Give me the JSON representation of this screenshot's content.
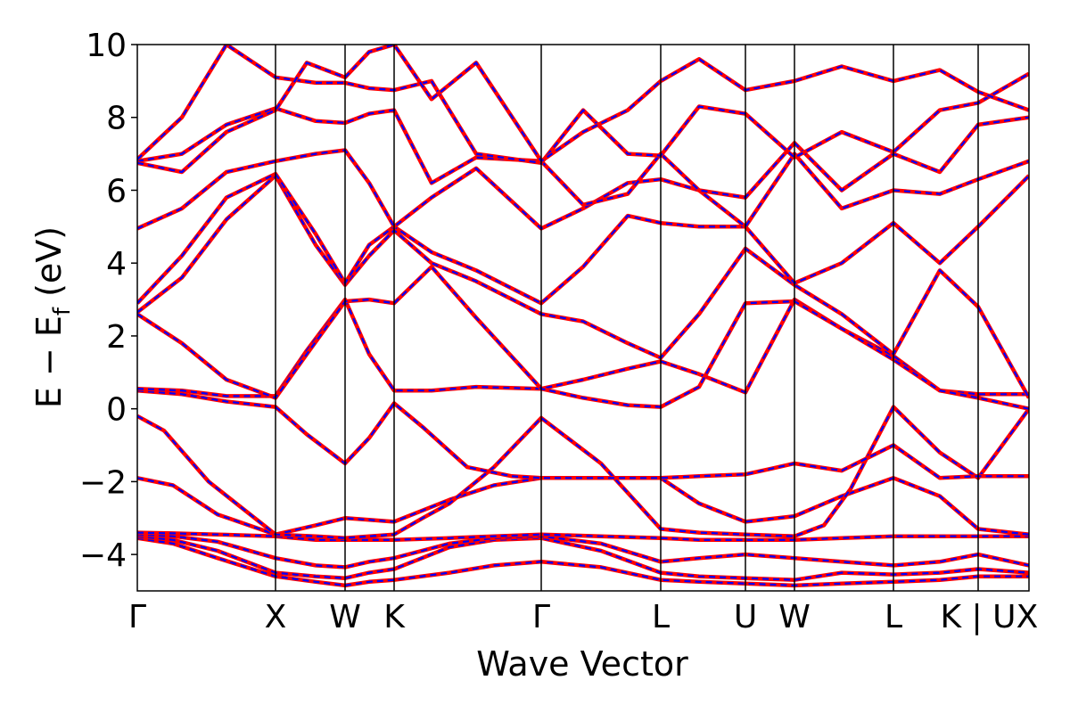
{
  "chart_data": {
    "type": "line",
    "title": "",
    "xlabel": "Wave Vector",
    "ylabel_main": "E − E",
    "ylabel_sub": "f",
    "ylabel_unit": " (eV)",
    "ylim": [
      -5,
      10
    ],
    "yticks": [
      -4,
      -2,
      0,
      2,
      4,
      6,
      8,
      10
    ],
    "ytick_labels": [
      "−4",
      "−2",
      "0",
      "2",
      "4",
      "6",
      "8",
      "10"
    ],
    "x_range": [
      0,
      1
    ],
    "kpoints": [
      {
        "label": "Γ",
        "x": 0.0
      },
      {
        "label": "X",
        "x": 0.155
      },
      {
        "label": "W",
        "x": 0.233
      },
      {
        "label": "K",
        "x": 0.288
      },
      {
        "label": "Γ",
        "x": 0.453
      },
      {
        "label": "L",
        "x": 0.587
      },
      {
        "label": "U",
        "x": 0.682
      },
      {
        "label": "W",
        "x": 0.737
      },
      {
        "label": "L",
        "x": 0.848
      },
      {
        "label": "K | U",
        "x": 0.943
      },
      {
        "label": "X",
        "x": 1.0
      }
    ],
    "series_style": {
      "outer_color": "#ff0000",
      "inner_color": "#0000ff",
      "inner_dash": "dashed"
    },
    "bands": [
      {
        "x": [
          0,
          0.04,
          0.09,
          0.155,
          0.2,
          0.233,
          0.26,
          0.288,
          0.35,
          0.4,
          0.453,
          0.52,
          0.587,
          0.63,
          0.682,
          0.737,
          0.79,
          0.848,
          0.9,
          0.943,
          1.0
        ],
        "y": [
          -3.55,
          -3.7,
          -4.1,
          -4.6,
          -4.75,
          -4.85,
          -4.75,
          -4.7,
          -4.5,
          -4.3,
          -4.2,
          -4.35,
          -4.7,
          -4.75,
          -4.8,
          -4.85,
          -4.8,
          -4.75,
          -4.7,
          -4.6,
          -4.6
        ]
      },
      {
        "x": [
          0,
          0.04,
          0.09,
          0.155,
          0.2,
          0.233,
          0.26,
          0.288,
          0.35,
          0.4,
          0.453,
          0.52,
          0.587,
          0.63,
          0.682,
          0.737,
          0.79,
          0.848,
          0.9,
          0.943,
          1.0
        ],
        "y": [
          -3.5,
          -3.6,
          -3.9,
          -4.5,
          -4.6,
          -4.65,
          -4.5,
          -4.4,
          -3.8,
          -3.6,
          -3.55,
          -3.9,
          -4.5,
          -4.6,
          -4.65,
          -4.7,
          -4.5,
          -4.55,
          -4.5,
          -4.4,
          -4.5
        ]
      },
      {
        "x": [
          0,
          0.04,
          0.09,
          0.155,
          0.2,
          0.233,
          0.26,
          0.288,
          0.35,
          0.4,
          0.453,
          0.52,
          0.587,
          0.63,
          0.682,
          0.737,
          0.79,
          0.848,
          0.9,
          0.943,
          1.0
        ],
        "y": [
          -3.45,
          -3.5,
          -3.65,
          -4.1,
          -4.3,
          -4.35,
          -4.2,
          -4.1,
          -3.7,
          -3.55,
          -3.5,
          -3.7,
          -4.2,
          -4.1,
          -4.0,
          -4.1,
          -4.2,
          -4.3,
          -4.2,
          -4.0,
          -4.3
        ]
      },
      {
        "x": [
          0,
          0.04,
          0.09,
          0.155,
          0.2,
          0.233,
          0.26,
          0.288,
          0.35,
          0.4,
          0.453,
          0.52,
          0.587,
          0.63,
          0.682,
          0.737,
          0.79,
          0.848,
          0.9,
          0.943,
          1.0
        ],
        "y": [
          -3.4,
          -3.42,
          -3.45,
          -3.5,
          -3.6,
          -3.6,
          -3.6,
          -3.6,
          -3.55,
          -3.5,
          -3.45,
          -3.5,
          -3.55,
          -3.6,
          -3.6,
          -3.6,
          -3.55,
          -3.5,
          -3.5,
          -3.5,
          -3.5
        ]
      },
      {
        "x": [
          0,
          0.04,
          0.09,
          0.155,
          0.2,
          0.233,
          0.26,
          0.288,
          0.35,
          0.4,
          0.453,
          0.52,
          0.587,
          0.63,
          0.682,
          0.737,
          0.79,
          0.848,
          0.9,
          0.943,
          1.0
        ],
        "y": [
          -1.9,
          -2.1,
          -2.9,
          -3.45,
          -3.2,
          -3.0,
          -3.05,
          -3.1,
          -2.5,
          -2.1,
          -1.9,
          -1.9,
          -1.9,
          -2.6,
          -3.1,
          -2.95,
          -2.4,
          -1.9,
          -2.4,
          -3.3,
          -3.45
        ]
      },
      {
        "x": [
          0,
          0.03,
          0.08,
          0.155,
          0.2,
          0.233,
          0.26,
          0.288,
          0.32,
          0.35,
          0.4,
          0.453,
          0.52,
          0.587,
          0.63,
          0.682,
          0.737,
          0.77,
          0.8,
          0.848,
          0.9,
          0.943,
          1.0
        ],
        "y": [
          -0.2,
          -0.6,
          -2.0,
          -3.45,
          -3.5,
          -3.55,
          -3.5,
          -3.45,
          -3.0,
          -2.6,
          -1.6,
          -0.25,
          -1.5,
          -3.3,
          -3.4,
          -3.45,
          -3.5,
          -3.2,
          -2.2,
          0.05,
          -1.2,
          -1.9,
          0.0
        ]
      },
      {
        "x": [
          0,
          0.05,
          0.1,
          0.155,
          0.19,
          0.233,
          0.26,
          0.288,
          0.32,
          0.37,
          0.42,
          0.453,
          0.5,
          0.55,
          0.587,
          0.63,
          0.682,
          0.71,
          0.737,
          0.79,
          0.848,
          0.9,
          0.943,
          1.0
        ],
        "y": [
          0.5,
          0.4,
          0.2,
          0.05,
          -0.7,
          -1.5,
          -0.8,
          0.15,
          -0.5,
          -1.6,
          -1.85,
          -1.9,
          -1.9,
          -1.9,
          -1.9,
          -1.85,
          -1.8,
          -1.65,
          -1.5,
          -1.7,
          -1.0,
          -1.9,
          -1.85,
          -1.85
        ]
      },
      {
        "x": [
          0,
          0.05,
          0.1,
          0.155,
          0.19,
          0.233,
          0.26,
          0.288,
          0.33,
          0.38,
          0.453,
          0.5,
          0.55,
          0.587,
          0.63,
          0.682,
          0.737,
          0.79,
          0.848,
          0.9,
          0.943,
          1.0
        ],
        "y": [
          0.55,
          0.5,
          0.35,
          0.35,
          1.6,
          3.0,
          1.5,
          0.5,
          0.5,
          0.6,
          0.55,
          0.8,
          1.1,
          1.3,
          0.95,
          0.45,
          3.0,
          2.2,
          1.45,
          0.5,
          0.4,
          0.4
        ]
      },
      {
        "x": [
          0,
          0.05,
          0.1,
          0.155,
          0.19,
          0.233,
          0.26,
          0.288,
          0.33,
          0.38,
          0.453,
          0.5,
          0.55,
          0.587,
          0.63,
          0.682,
          0.737,
          0.79,
          0.848,
          0.9,
          0.943,
          1.0
        ],
        "y": [
          2.6,
          1.8,
          0.8,
          0.3,
          1.5,
          2.95,
          3.0,
          2.9,
          3.9,
          2.5,
          0.55,
          0.3,
          0.1,
          0.05,
          0.6,
          2.9,
          2.95,
          2.2,
          1.35,
          0.5,
          0.3,
          0.0
        ]
      },
      {
        "x": [
          0,
          0.05,
          0.1,
          0.155,
          0.2,
          0.233,
          0.26,
          0.288,
          0.33,
          0.38,
          0.453,
          0.5,
          0.55,
          0.587,
          0.63,
          0.682,
          0.737,
          0.79,
          0.848,
          0.9,
          0.943,
          1.0
        ],
        "y": [
          2.65,
          3.6,
          5.2,
          6.4,
          4.5,
          3.4,
          4.2,
          4.9,
          4.0,
          3.5,
          2.6,
          2.4,
          1.8,
          1.4,
          2.6,
          4.4,
          3.4,
          2.6,
          1.5,
          3.8,
          2.8,
          0.3
        ]
      },
      {
        "x": [
          0,
          0.05,
          0.1,
          0.155,
          0.2,
          0.233,
          0.26,
          0.288,
          0.33,
          0.38,
          0.453,
          0.5,
          0.55,
          0.587,
          0.63,
          0.682,
          0.737,
          0.79,
          0.848,
          0.9,
          0.943,
          1.0
        ],
        "y": [
          2.9,
          4.2,
          5.8,
          6.45,
          4.8,
          3.45,
          4.5,
          5.0,
          4.3,
          3.8,
          2.9,
          3.9,
          5.3,
          5.1,
          5.0,
          5.0,
          3.45,
          4.0,
          5.1,
          4.0,
          5.0,
          6.4
        ]
      },
      {
        "x": [
          0,
          0.05,
          0.1,
          0.155,
          0.2,
          0.233,
          0.26,
          0.288,
          0.33,
          0.38,
          0.453,
          0.5,
          0.55,
          0.587,
          0.63,
          0.682,
          0.737,
          0.79,
          0.848,
          0.9,
          0.943,
          1.0
        ],
        "y": [
          4.95,
          5.5,
          6.5,
          6.8,
          7.0,
          7.1,
          6.2,
          5.0,
          5.8,
          6.6,
          4.95,
          5.5,
          6.2,
          6.3,
          6.0,
          5.0,
          7.0,
          5.5,
          6.0,
          5.9,
          6.3,
          6.8
        ]
      },
      {
        "x": [
          0,
          0.05,
          0.1,
          0.155,
          0.2,
          0.233,
          0.26,
          0.288,
          0.33,
          0.38,
          0.453,
          0.5,
          0.55,
          0.587,
          0.63,
          0.682,
          0.737,
          0.79,
          0.848,
          0.9,
          0.943,
          1.0
        ],
        "y": [
          6.8,
          7.0,
          7.8,
          8.25,
          7.9,
          7.85,
          8.1,
          8.2,
          6.2,
          6.9,
          6.8,
          5.6,
          5.9,
          7.0,
          6.0,
          5.8,
          7.3,
          6.0,
          7.0,
          6.5,
          7.8,
          8.0
        ]
      },
      {
        "x": [
          0,
          0.05,
          0.1,
          0.155,
          0.2,
          0.233,
          0.26,
          0.288,
          0.33,
          0.38,
          0.453,
          0.5,
          0.55,
          0.587,
          0.63,
          0.682,
          0.737,
          0.79,
          0.848,
          0.9,
          0.943,
          1.0
        ],
        "y": [
          6.85,
          8.0,
          10.0,
          9.1,
          8.95,
          8.95,
          8.8,
          8.75,
          9.0,
          7.0,
          6.75,
          8.2,
          7.0,
          6.95,
          8.3,
          8.1,
          6.9,
          7.6,
          7.05,
          8.2,
          8.4,
          9.2
        ]
      },
      {
        "x": [
          0,
          0.05,
          0.1,
          0.155,
          0.19,
          0.233,
          0.26,
          0.288,
          0.33,
          0.38,
          0.453,
          0.5,
          0.55,
          0.587,
          0.63,
          0.682,
          0.737,
          0.79,
          0.848,
          0.9,
          0.943,
          1.0
        ],
        "y": [
          6.75,
          6.5,
          7.6,
          8.2,
          9.5,
          9.1,
          9.8,
          10.0,
          8.5,
          9.5,
          6.8,
          7.6,
          8.2,
          9.0,
          9.6,
          8.75,
          9.0,
          9.4,
          9.0,
          9.3,
          8.7,
          8.2
        ]
      }
    ]
  }
}
